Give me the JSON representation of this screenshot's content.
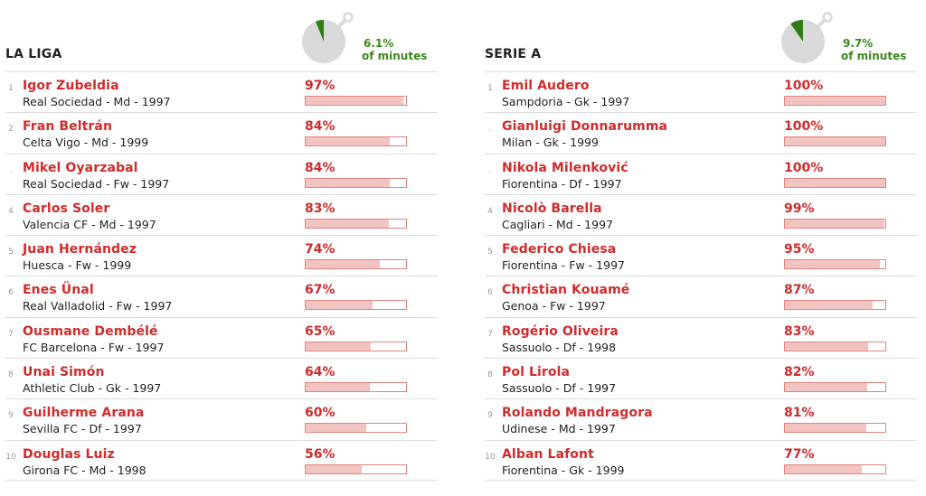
{
  "leagues": [
    {
      "title": "LA LIGA",
      "share_pct": "6.1%",
      "share_label": "of minutes",
      "share_fraction": 0.061,
      "players": [
        {
          "rank": "1",
          "name": "Igor Zubeldia",
          "meta": "Real Sociedad - Md - 1997",
          "value_label": "97%",
          "value": 97
        },
        {
          "rank": "2",
          "name": "Fran Beltrán",
          "meta": "Celta Vigo - Md - 1999",
          "value_label": "84%",
          "value": 84
        },
        {
          "rank": ".",
          "name": "Mikel Oyarzabal",
          "meta": "Real Sociedad - Fw - 1997",
          "value_label": "84%",
          "value": 84
        },
        {
          "rank": "4",
          "name": "Carlos Soler",
          "meta": "Valencia CF - Md - 1997",
          "value_label": "83%",
          "value": 83
        },
        {
          "rank": "5",
          "name": "Juan Hernández",
          "meta": "Huesca - Fw - 1999",
          "value_label": "74%",
          "value": 74
        },
        {
          "rank": "6",
          "name": "Enes Ünal",
          "meta": "Real Valladolid - Fw - 1997",
          "value_label": "67%",
          "value": 67
        },
        {
          "rank": "7",
          "name": "Ousmane Dembélé",
          "meta": "FC Barcelona - Fw - 1997",
          "value_label": "65%",
          "value": 65
        },
        {
          "rank": "8",
          "name": "Unai Simón",
          "meta": "Athletic Club - Gk - 1997",
          "value_label": "64%",
          "value": 64
        },
        {
          "rank": "9",
          "name": "Guilherme Arana",
          "meta": "Sevilla FC - Df - 1997",
          "value_label": "60%",
          "value": 60
        },
        {
          "rank": "10",
          "name": "Douglas Luiz",
          "meta": "Girona FC - Md - 1998",
          "value_label": "56%",
          "value": 56
        }
      ]
    },
    {
      "title": "SERIE A",
      "share_pct": "9.7%",
      "share_label": "of minutes",
      "share_fraction": 0.097,
      "players": [
        {
          "rank": "1",
          "name": "Emil Audero",
          "meta": "Sampdoria - Gk - 1997",
          "value_label": "100%",
          "value": 100
        },
        {
          "rank": ".",
          "name": "Gianluigi Donnarumma",
          "meta": "Milan - Gk - 1999",
          "value_label": "100%",
          "value": 100
        },
        {
          "rank": ".",
          "name": "Nikola Milenković",
          "meta": "Fiorentina - Df - 1997",
          "value_label": "100%",
          "value": 100
        },
        {
          "rank": "4",
          "name": "Nicolò Barella",
          "meta": "Cagliari - Md - 1997",
          "value_label": "99%",
          "value": 99
        },
        {
          "rank": "5",
          "name": "Federico Chiesa",
          "meta": "Fiorentina - Fw - 1997",
          "value_label": "95%",
          "value": 95
        },
        {
          "rank": "6",
          "name": "Christian Kouamé",
          "meta": "Genoa - Fw - 1997",
          "value_label": "87%",
          "value": 87
        },
        {
          "rank": "7",
          "name": "Rogério Oliveira",
          "meta": "Sassuolo - Df - 1998",
          "value_label": "83%",
          "value": 83
        },
        {
          "rank": "8",
          "name": "Pol Lirola",
          "meta": "Sassuolo - Df - 1997",
          "value_label": "82%",
          "value": 82
        },
        {
          "rank": "9",
          "name": "Rolando Mandragora",
          "meta": "Udinese - Md - 1997",
          "value_label": "81%",
          "value": 81
        },
        {
          "rank": "10",
          "name": "Alban Lafont",
          "meta": "Fiorentina - Gk - 1999",
          "value_label": "77%",
          "value": 77
        }
      ]
    }
  ],
  "colors": {
    "accent_red": "#d12b2b",
    "bar_fill": "#f1c4c1",
    "bar_border": "#e0867c",
    "clock_face": "#d9d9d9",
    "clock_wedge": "#2f7d14",
    "share_text": "#3a8a1c"
  },
  "icons": {
    "clock": "stopwatch-icon"
  }
}
